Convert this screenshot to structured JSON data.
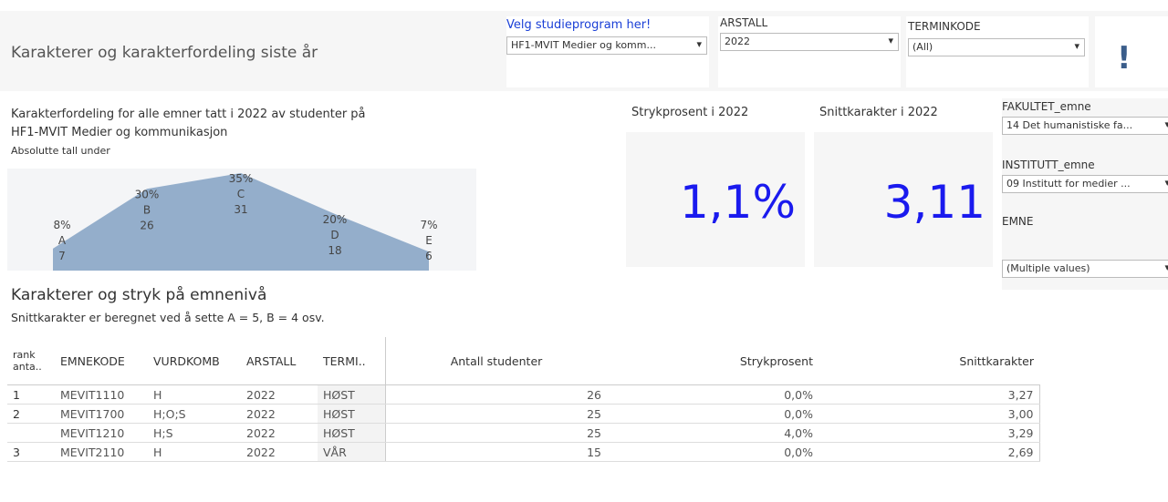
{
  "header": {
    "title": "Karakterer og karakterfordeling siste år"
  },
  "filters": {
    "program": {
      "label": "Velg studieprogram her!",
      "value": "HF1-MVIT Medier og komm..."
    },
    "year": {
      "label": "ARSTALL",
      "value": "2022"
    },
    "term": {
      "label": "TERMINKODE",
      "value": "(All)"
    },
    "alert": "!",
    "faculty": {
      "label": "FAKULTET_emne",
      "value": "14 Det humanistiske fa..."
    },
    "institute": {
      "label": "INSTITUTT_emne",
      "value": "09 Institutt for medier ..."
    },
    "course": {
      "label": "EMNE",
      "value": "(Multiple values)"
    }
  },
  "chart_data": {
    "type": "area",
    "title": [
      "Karakterfordeling for alle emner tatt i 2022 av studenter på",
      "HF1-MVIT Medier og kommunikasjon"
    ],
    "subtitle": "Absolutte tall under",
    "categories": [
      "A",
      "B",
      "C",
      "D",
      "E"
    ],
    "values": [
      7,
      26,
      31,
      18,
      6
    ],
    "value_labels": [
      "7",
      "26",
      "31",
      "18",
      "6"
    ],
    "percent_labels": [
      "8%",
      "30%",
      "35%",
      "20%",
      "7%"
    ],
    "color": "#94aecb"
  },
  "kpis": [
    {
      "label": "Strykprosent i 2022",
      "value": "1,1%"
    },
    {
      "label": "Snittkarakter i 2022",
      "value": "3,11"
    }
  ],
  "table": {
    "title": "Karakterer og stryk på emnenivå",
    "subtitle": "Snittkarakter er beregnet ved å sette A = 5, B = 4 osv.",
    "columns": [
      "rank anta..",
      "EMNEKODE",
      "VURDKOMB",
      "ARSTALL",
      "TERMI..",
      "Antall studenter",
      "Strykprosent",
      "Snittkarakter"
    ],
    "rows": [
      [
        "1",
        "MEVIT1110",
        "H",
        "2022",
        "HØST",
        "26",
        "0,0%",
        "3,27"
      ],
      [
        "2",
        "MEVIT1700",
        "H;O;S",
        "2022",
        "HØST",
        "25",
        "0,0%",
        "3,00"
      ],
      [
        null,
        "MEVIT1210",
        "H;S",
        "2022",
        "HØST",
        "25",
        "4,0%",
        "3,29"
      ],
      [
        "3",
        "MEVIT2110",
        "H",
        "2022",
        "VÅR",
        "15",
        "0,0%",
        "2,69"
      ]
    ]
  }
}
